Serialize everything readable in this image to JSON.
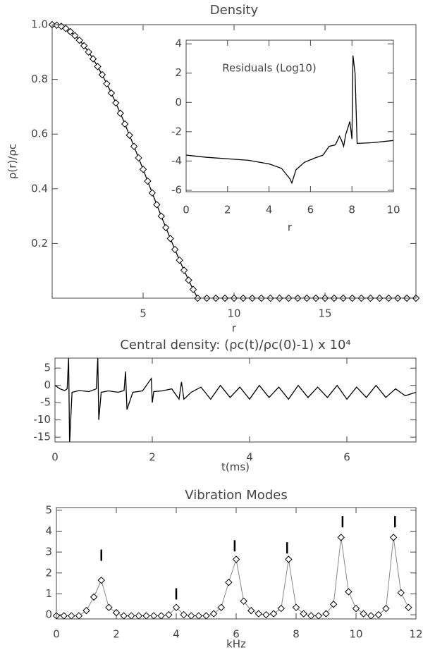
{
  "chart_data": [
    {
      "type": "line",
      "title": "Density",
      "xlabel": "r",
      "ylabel": "ρ(r)/ρc",
      "marker": "diamond",
      "color": "#000000",
      "x": [
        0,
        0.25,
        0.5,
        0.75,
        1,
        1.25,
        1.5,
        1.75,
        2,
        2.25,
        2.5,
        2.75,
        3,
        3.25,
        3.5,
        3.75,
        4,
        4.25,
        4.5,
        4.75,
        5,
        5.25,
        5.5,
        5.75,
        6,
        6.25,
        6.5,
        6.75,
        7,
        7.25,
        7.5,
        7.75,
        8,
        8.5,
        9,
        9.5,
        10,
        10.5,
        11,
        11.5,
        12,
        12.5,
        13,
        13.5,
        14,
        14.5,
        15,
        15.5,
        16,
        16.5,
        17,
        17.5,
        18,
        18.5,
        19,
        19.5,
        20
      ],
      "values": [
        1,
        0.998,
        0.994,
        0.986,
        0.9745,
        0.96,
        0.943,
        0.923,
        0.9,
        0.875,
        0.847,
        0.817,
        0.784,
        0.75,
        0.714,
        0.676,
        0.637,
        0.596,
        0.555,
        0.513,
        0.471,
        0.428,
        0.385,
        0.342,
        0.3,
        0.258,
        0.218,
        0.178,
        0.139,
        0.102,
        0.066,
        0.032,
        0,
        0,
        0,
        0,
        0,
        0,
        0,
        0,
        0,
        0,
        0,
        0,
        0,
        0,
        0,
        0,
        0,
        0,
        0,
        0,
        0,
        0,
        0,
        0,
        0
      ],
      "xlim": [
        0,
        20
      ],
      "ylim": [
        0,
        1
      ],
      "xticks": [
        5,
        10,
        15
      ],
      "yticks": [
        0.2,
        0.4,
        0.6,
        {
          "value": 0.8,
          "label": "0.8"
        },
        {
          "value": 1,
          "label": "1.0"
        }
      ]
    },
    {
      "type": "line",
      "annotation": "Residuals (Log10)",
      "xlabel": "r",
      "color": "#000000",
      "x": [
        0,
        1,
        2,
        3,
        4,
        4.6,
        5,
        5.1,
        5.3,
        5.7,
        6.2,
        6.6,
        6.9,
        7.2,
        7.4,
        7.5,
        7.6,
        7.7,
        7.9,
        8.0,
        8.05,
        8.15,
        8.25,
        9,
        10
      ],
      "values": [
        -3.6,
        -3.75,
        -3.85,
        -3.95,
        -4.2,
        -4.5,
        -5.2,
        -5.5,
        -4.6,
        -4.1,
        -3.8,
        -3.6,
        -3.0,
        -2.9,
        -2.3,
        -2.6,
        -3.0,
        -2.2,
        -1.3,
        -2.5,
        3.2,
        2.0,
        -2.8,
        -2.75,
        -2.6
      ],
      "xlim": [
        0,
        10
      ],
      "ylim": [
        -6.1,
        4.25
      ],
      "xticks": [
        0,
        2,
        4,
        6,
        8,
        10
      ],
      "yticks": [
        -6,
        -4,
        -2,
        0,
        2,
        4
      ]
    },
    {
      "type": "line",
      "title": "Central density:  (ρc(t)/ρc(0)-1) x 10⁴",
      "xlabel": "t(ms)",
      "color": "#000000",
      "x": [
        0,
        0.1,
        0.2,
        0.25,
        0.28,
        0.3,
        0.35,
        0.5,
        0.7,
        0.85,
        0.88,
        0.9,
        0.95,
        1.1,
        1.3,
        1.42,
        1.45,
        1.48,
        1.6,
        1.8,
        1.98,
        2.0,
        2.03,
        2.2,
        2.4,
        2.55,
        2.6,
        2.65,
        2.8,
        3.0,
        3.2,
        3.4,
        3.6,
        3.8,
        4.0,
        4.2,
        4.4,
        4.6,
        4.8,
        5.0,
        5.2,
        5.4,
        5.6,
        5.8,
        6.0,
        6.2,
        6.4,
        6.6,
        6.8,
        7.0,
        7.2,
        7.42
      ],
      "values": [
        0,
        -1,
        -1.5,
        -1,
        8,
        -17,
        -2,
        -1.5,
        -1.8,
        -1,
        8,
        -10,
        -2,
        -1.6,
        -2,
        -1.5,
        4,
        -7,
        -2,
        -1.6,
        2,
        -5,
        -1.8,
        -1.6,
        -1,
        -4,
        1,
        -4,
        -2,
        -0.5,
        -4,
        0,
        -3.5,
        -0.5,
        -4,
        0,
        -3.5,
        -0.5,
        -4,
        0,
        -3.5,
        -0.5,
        -3.5,
        0,
        -4,
        -0.5,
        -3.5,
        0,
        -3.5,
        -1,
        -3,
        -2
      ],
      "xlim": [
        0,
        7.42
      ],
      "ylim": [
        -16.4,
        7.9
      ],
      "xticks": [
        0,
        2,
        4,
        6
      ],
      "yticks": [
        -15,
        -10,
        -5,
        0,
        5
      ]
    },
    {
      "type": "line",
      "title": "Vibration Modes",
      "xlabel": "kHz",
      "marker": "diamond",
      "color": "#888888",
      "x": [
        0,
        0.25,
        0.5,
        0.75,
        1,
        1.25,
        1.5,
        1.75,
        2,
        2.25,
        2.5,
        2.75,
        3,
        3.25,
        3.5,
        3.75,
        4,
        4.25,
        4.5,
        4.75,
        5,
        5.25,
        5.5,
        5.75,
        6,
        6.25,
        6.5,
        6.75,
        7,
        7.25,
        7.5,
        7.75,
        8,
        8.25,
        8.5,
        8.75,
        9,
        9.25,
        9.5,
        9.75,
        10,
        10.25,
        10.5,
        10.75,
        11,
        11.25,
        11.5,
        11.75
      ],
      "values": [
        -0.05,
        -0.05,
        -0.05,
        -0.05,
        0.2,
        0.85,
        1.65,
        0.35,
        0.1,
        -0.05,
        -0.05,
        -0.05,
        -0.05,
        -0.05,
        -0.05,
        0,
        0.35,
        0,
        -0.05,
        -0.05,
        -0.05,
        0.05,
        0.35,
        1.55,
        2.65,
        0.65,
        0.2,
        0.05,
        0,
        0.05,
        0.3,
        2.65,
        0.35,
        0.05,
        -0.05,
        -0.05,
        0.05,
        0.5,
        3.7,
        1.1,
        0.3,
        0.05,
        -0.05,
        0,
        0.3,
        3.7,
        1.05,
        0.35
      ],
      "modes": {
        "x": [
          1.5,
          4.0,
          5.95,
          7.7,
          9.55,
          11.3
        ],
        "values": [
          2.85,
          1.0,
          3.3,
          3.2,
          4.45,
          4.45
        ]
      },
      "xlim": [
        0,
        12
      ],
      "ylim": [
        -0.2,
        5.13
      ],
      "xticks": [
        0,
        2,
        4,
        6,
        8,
        10,
        12
      ],
      "yticks": [
        0,
        1,
        2,
        3,
        4,
        5
      ]
    }
  ]
}
